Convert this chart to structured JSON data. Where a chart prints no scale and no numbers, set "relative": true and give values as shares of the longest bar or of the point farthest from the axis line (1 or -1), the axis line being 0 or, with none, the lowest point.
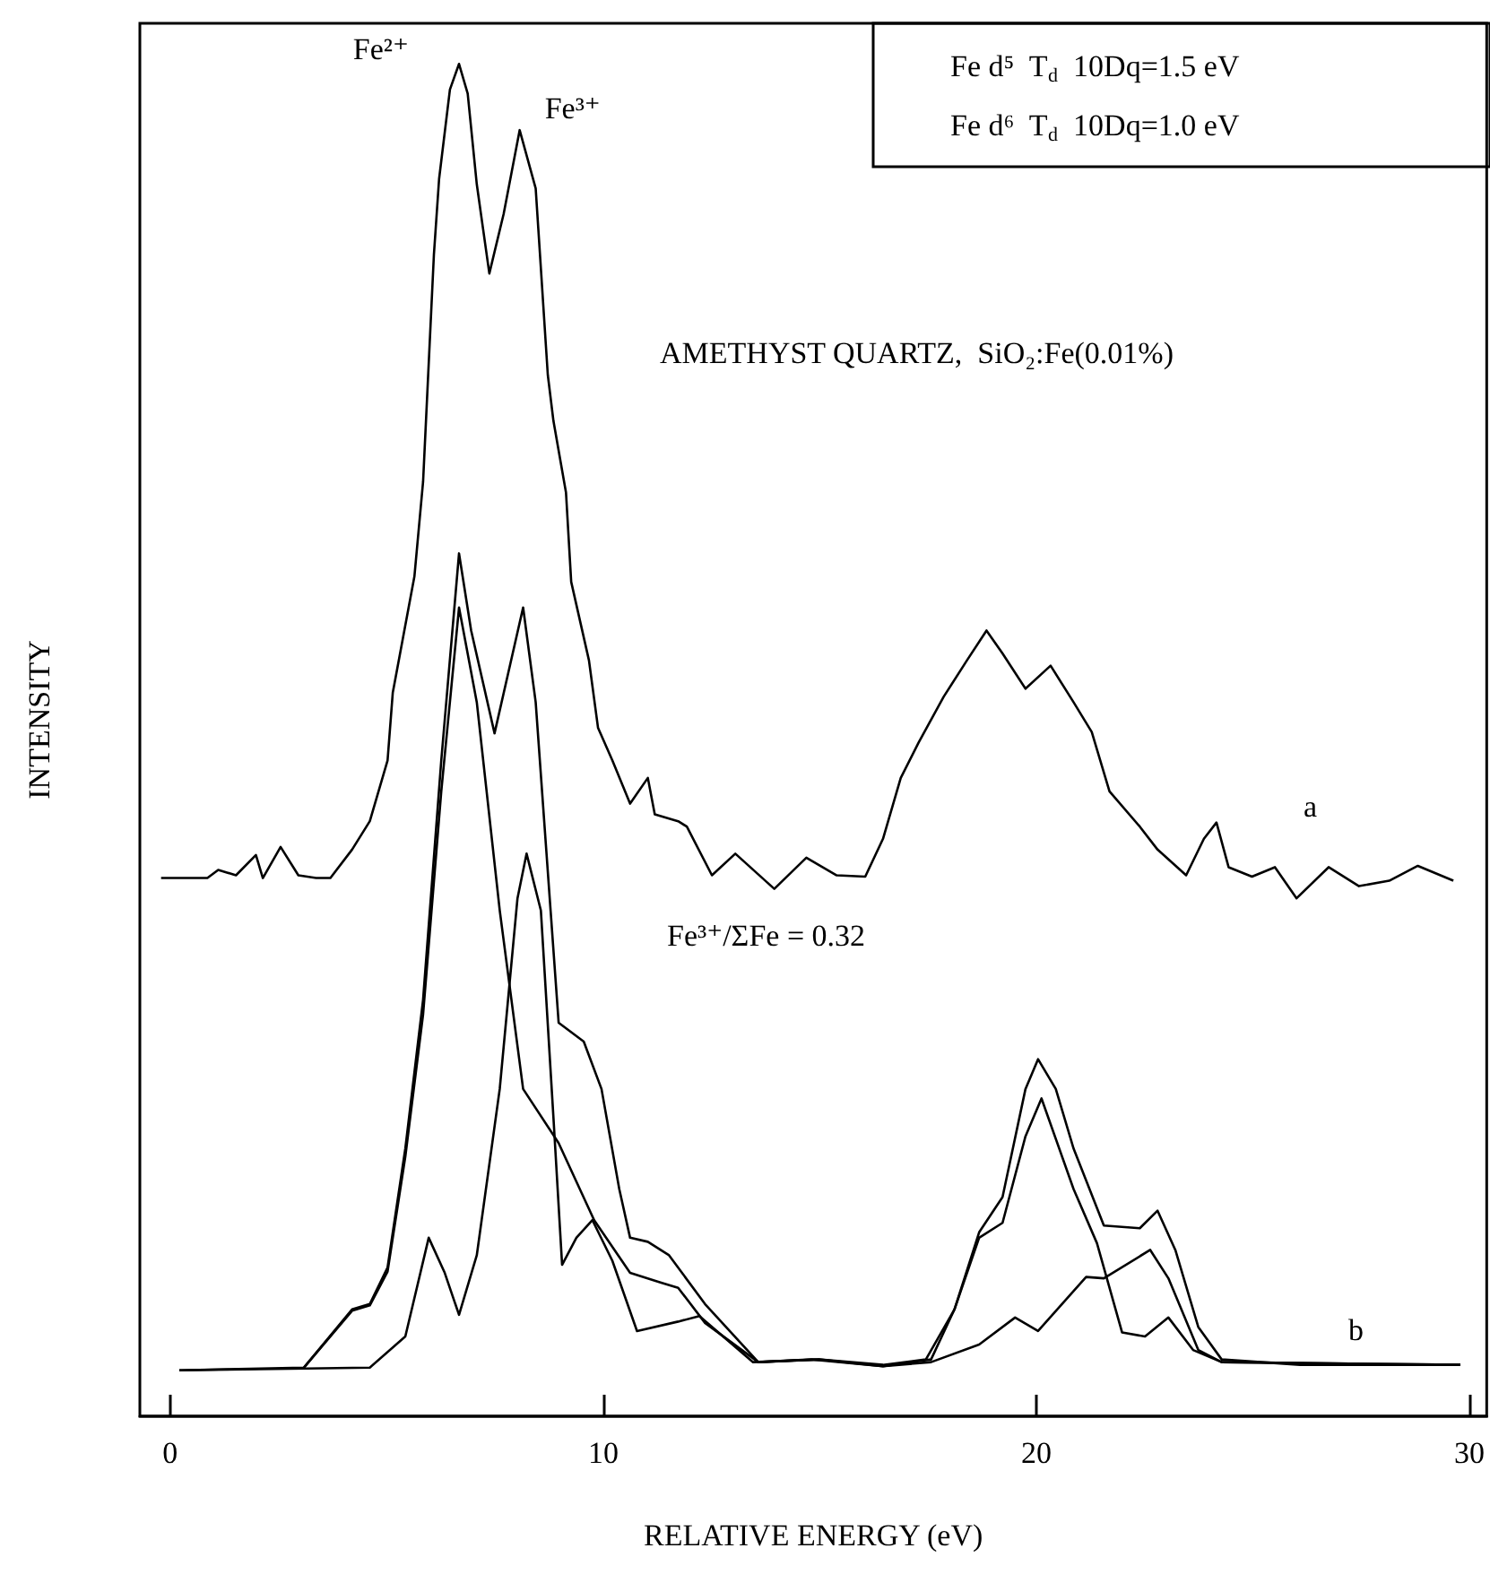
{
  "chart_data": {
    "type": "line",
    "relative": true,
    "xlabel": "RELATIVE ENERGY (eV)",
    "ylabel": "INTENSITY",
    "xlim": [
      -0.7,
      30.4
    ],
    "xticks": [
      0,
      10,
      20,
      30
    ],
    "tick_labels": "x",
    "grid": false,
    "marker": "none",
    "line_style": "solid",
    "annotations": [
      "Fe d⁵  T$_{d}$  10Dq=1.5 eV",
      "Fe d⁶  T$_{d}$  10Dq=1.0 eV",
      "AMETHYST QUARTZ,  SiO₂:Fe(0.01%)",
      "Fe³⁺/ΣFe = 0.32",
      {
        "text": "Fe²⁺",
        "x": 6.67,
        "y": 1.0
      },
      {
        "text": "Fe³⁺",
        "x": 8.07,
        "y": 0.951
      },
      "a",
      "b"
    ],
    "series": [
      {
        "color": "#000000",
        "x": [
          -0.21,
          0.86,
          1.11,
          1.52,
          1.98,
          2.14,
          2.55,
          2.96,
          3.37,
          3.7,
          4.2,
          4.61,
          5.02,
          5.14,
          5.64,
          5.84,
          6.09,
          6.21,
          6.46,
          6.67,
          6.87,
          7.08,
          7.37,
          7.7,
          8.07,
          8.44,
          8.72,
          8.85,
          9.14,
          9.26,
          9.67,
          9.88,
          10.21,
          10.62,
          11.03,
          11.19,
          11.73,
          11.93,
          12.51,
          13.05,
          13.95,
          14.69,
          15.39,
          16.05,
          16.46,
          16.87,
          17.28,
          17.86,
          18.4,
          18.85,
          19.22,
          19.75,
          20.33,
          20.86,
          21.28,
          21.69,
          22.39,
          22.8,
          23.46,
          23.87,
          24.16,
          24.44,
          24.98,
          25.51,
          26.01,
          26.75,
          27.45,
          28.15,
          28.81,
          29.63
        ],
        "values": [
          0.398,
          0.398,
          0.404,
          0.4,
          0.415,
          0.398,
          0.421,
          0.4,
          0.398,
          0.398,
          0.419,
          0.44,
          0.485,
          0.535,
          0.621,
          0.691,
          0.859,
          0.915,
          0.981,
          1.0,
          0.978,
          0.911,
          0.845,
          0.889,
          0.951,
          0.908,
          0.77,
          0.736,
          0.683,
          0.617,
          0.559,
          0.509,
          0.485,
          0.453,
          0.472,
          0.445,
          0.44,
          0.436,
          0.4,
          0.416,
          0.39,
          0.413,
          0.4,
          0.399,
          0.427,
          0.472,
          0.498,
          0.532,
          0.559,
          0.581,
          0.564,
          0.538,
          0.555,
          0.528,
          0.506,
          0.462,
          0.436,
          0.419,
          0.4,
          0.427,
          0.439,
          0.406,
          0.399,
          0.406,
          0.383,
          0.406,
          0.392,
          0.396,
          0.407,
          0.396
        ]
      },
      {
        "color": "#000000",
        "x": [
          0.21,
          3.09,
          4.2,
          4.61,
          5.02,
          5.43,
          5.84,
          6.26,
          6.67,
          6.95,
          7.49,
          8.15,
          8.44,
          8.97,
          9.55,
          9.96,
          10.37,
          10.62,
          11.03,
          11.52,
          12.35,
          13.58,
          14.98,
          16.46,
          17.45,
          18.11,
          18.68,
          19.22,
          19.75,
          20.04,
          20.45,
          20.86,
          21.56,
          22.39,
          22.8,
          23.21,
          23.74,
          24.28,
          26.09,
          29.79
        ],
        "values": [
          0.034,
          0.036,
          0.079,
          0.083,
          0.11,
          0.198,
          0.308,
          0.485,
          0.638,
          0.581,
          0.505,
          0.598,
          0.528,
          0.291,
          0.277,
          0.242,
          0.168,
          0.132,
          0.129,
          0.119,
          0.083,
          0.04,
          0.042,
          0.038,
          0.042,
          0.079,
          0.136,
          0.162,
          0.242,
          0.264,
          0.242,
          0.198,
          0.141,
          0.139,
          0.152,
          0.123,
          0.066,
          0.042,
          0.038,
          0.038
        ]
      },
      {
        "color": "#000000",
        "x": [
          3.09,
          4.2,
          4.61,
          5.02,
          5.43,
          5.84,
          6.26,
          6.67,
          7.08,
          7.61,
          8.15,
          8.97,
          9.79,
          10.62,
          11.32,
          11.73,
          12.35,
          13.58,
          14.81,
          16.46,
          17.57,
          18.11,
          18.68,
          19.22,
          19.75,
          20.12,
          20.86,
          21.4,
          21.98,
          22.51,
          23.05,
          23.62,
          24.28,
          29.79
        ],
        "values": [
          0.036,
          0.078,
          0.082,
          0.107,
          0.192,
          0.297,
          0.462,
          0.598,
          0.528,
          0.374,
          0.242,
          0.202,
          0.145,
          0.106,
          0.099,
          0.095,
          0.069,
          0.04,
          0.042,
          0.037,
          0.042,
          0.079,
          0.132,
          0.143,
          0.207,
          0.235,
          0.168,
          0.128,
          0.062,
          0.059,
          0.073,
          0.049,
          0.04,
          0.038
        ]
      },
      {
        "color": "#000000",
        "x": [
          0.21,
          4.61,
          5.43,
          5.97,
          6.34,
          6.67,
          7.08,
          7.61,
          8.02,
          8.23,
          8.56,
          8.85,
          9.05,
          9.38,
          9.75,
          10.21,
          10.78,
          11.73,
          12.22,
          13.46,
          14.98,
          16.46,
          17.57,
          18.68,
          19.51,
          20.04,
          21.15,
          21.56,
          22.63,
          23.05,
          23.74,
          24.28,
          29.79
        ],
        "values": [
          0.034,
          0.036,
          0.059,
          0.132,
          0.106,
          0.075,
          0.119,
          0.242,
          0.383,
          0.416,
          0.374,
          0.221,
          0.112,
          0.132,
          0.145,
          0.115,
          0.063,
          0.07,
          0.074,
          0.04,
          0.042,
          0.037,
          0.04,
          0.053,
          0.073,
          0.063,
          0.103,
          0.102,
          0.123,
          0.102,
          0.049,
          0.04,
          0.038
        ]
      }
    ]
  }
}
